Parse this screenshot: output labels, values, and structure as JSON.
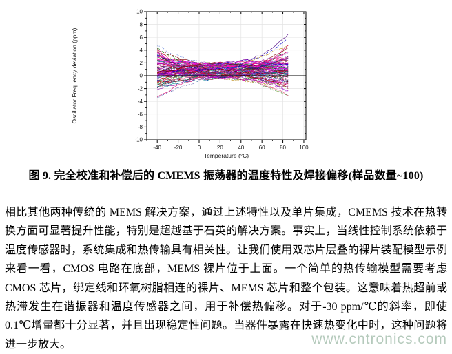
{
  "figure": {
    "caption": "图 9. 完全校准和补偿后的 CMEMS 振荡器的温度特性及焊接偏移(样品数量~100)"
  },
  "article": {
    "paragraph": "相比其他两种传统的 MEMS 解决方案，通过上述特性以及单片集成，CMEMS 技术在热转换方面可显著提升性能，特别是超越基于石英的解决方案。事实上，当线性控制系统依赖于温度传感器时，系统集成和热传输具有相关性。让我们使用双芯片层叠的裸片装配模型示例来看一看，CMOS 电路在底部，MEMS 裸片位于上面。一个简单的热传输模型需要考虑 CMOS 芯片，绑定线和环氧树脂相连的裸片、MEMS 芯片和整个包装。这意味着热超前或热滞发生在谐振器和温度传感器之间，用于补偿热偏移。对于-30 ppm/℃的斜率，即使 0.1℃增量都十分显著，并且出现稳定性问题。当器件暴露在快速热变化中时，这种问题将进一步放大。"
  },
  "watermark": {
    "text": "www.cntronics.com",
    "color": "#b5cabc"
  },
  "chart_data": {
    "type": "line",
    "title": "",
    "xlabel": "Temperature (°C)",
    "ylabel": "Oscillator Frequency deviation (ppm)",
    "xlim": [
      -50,
      102
    ],
    "ylim": [
      -10,
      10
    ],
    "x_ticks": [
      -40,
      -20,
      0,
      20,
      40,
      60,
      80,
      100
    ],
    "y_ticks": [
      -10,
      -8,
      -6,
      -4,
      -2,
      0,
      2,
      4,
      6,
      8,
      10
    ],
    "x_minor_step": 10,
    "y_minor_step": 1,
    "grid": true,
    "grid_color": "#e3e3e3",
    "zero_line": true,
    "num_curves": 100,
    "x_data_range": [
      -40,
      85
    ],
    "envelope": {
      "x": [
        -40,
        20,
        85
      ],
      "y_top": [
        7.0,
        2.2,
        6.6
      ],
      "y_bottom": [
        -5.2,
        -0.8,
        -2.6
      ]
    },
    "render_params": {
      "seed": 12,
      "pinch_x": 20,
      "y0_range": [
        -0.4,
        1.9
      ],
      "slope_range": [
        -0.02,
        0.02
      ],
      "curvature_pos_max": 0.0014,
      "curvature_neg_max": 0.0011,
      "noise_amp": 0.38,
      "step": 2.5,
      "dash_patterns": [
        "",
        "",
        "",
        "2.5,1.5",
        "1,1.5",
        "4,1.5,1,1.5"
      ],
      "palette": [
        "#000080",
        "#800000",
        "#c00000",
        "#d4006a",
        "#cc00cc",
        "#8000a0",
        "#ff00ff",
        "#e75480",
        "#006400",
        "#2e8b2e",
        "#808000",
        "#b8860b",
        "#e07000",
        "#0000cd",
        "#3a5fcd",
        "#008b8b",
        "#404040",
        "#9932cc",
        "#ff1493",
        "#4b0082"
      ]
    }
  }
}
